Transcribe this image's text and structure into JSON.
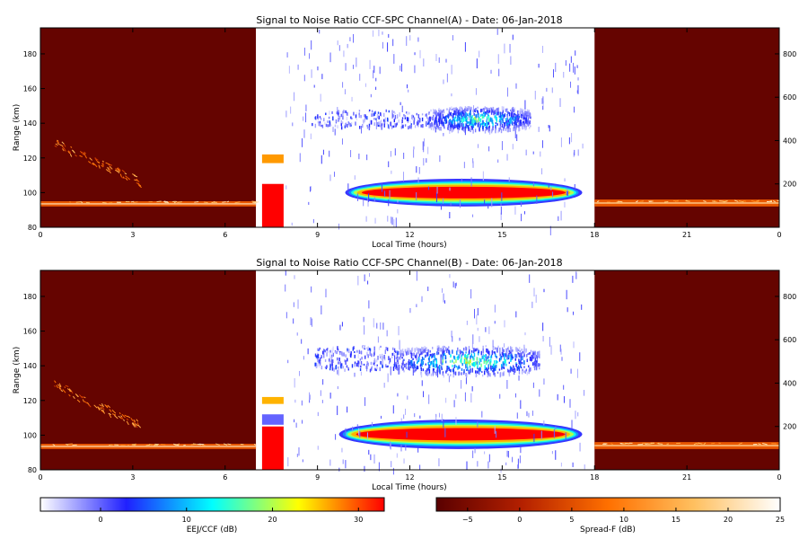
{
  "chart_data": [
    {
      "type": "heatmap",
      "title": "Signal to Noise Ratio CCF-SPC Channel(A) - Date: 06-Jan-2018",
      "xlabel": "Local Time (hours)",
      "ylabel": "Range (km)",
      "x_ticks": [
        "0",
        "3",
        "6",
        "9",
        "12",
        "15",
        "18",
        "21",
        "0"
      ],
      "x_range": [
        0,
        24
      ],
      "y_ticks": [
        80,
        100,
        120,
        140,
        160,
        180
      ],
      "y_range": [
        80,
        195
      ],
      "y2_ticks": [
        200,
        400,
        600,
        800
      ],
      "night_windows_hours": [
        [
          0,
          7
        ],
        [
          18,
          24
        ]
      ],
      "features": [
        {
          "kind": "eej_daytime_echo",
          "colormap": "ccf",
          "t_start": 9.9,
          "t_end": 17.6,
          "alt_bottom": 92,
          "alt_top": 108,
          "peak_db": 33
        },
        {
          "kind": "upper_echo_patches",
          "colormap": "ccf",
          "t_start": 12.6,
          "t_end": 15.9,
          "alt_bottom": 136,
          "alt_top": 150,
          "peak_db": 20
        },
        {
          "kind": "scattered_upper_echoes",
          "colormap": "ccf",
          "t_start": 8.8,
          "t_end": 12.6,
          "alt_bottom": 138,
          "alt_top": 148,
          "peak_db": 5
        },
        {
          "kind": "calibration_block",
          "colormap": "ccf",
          "t_start": 7.2,
          "t_end": 7.9,
          "alt_bottom": 80,
          "alt_top": 105,
          "value_db": 33
        },
        {
          "kind": "calibration_block",
          "colormap": "ccf",
          "t_start": 7.2,
          "t_end": 7.9,
          "alt_bottom": 117,
          "alt_top": 122,
          "value_db": 27
        },
        {
          "kind": "spread_f_night_echo",
          "colormap": "spreadf",
          "t_start": 0.0,
          "t_end": 7.0,
          "alt_bottom": 92,
          "alt_top": 95,
          "peak_db": 22
        },
        {
          "kind": "spread_f_night_echo",
          "colormap": "spreadf",
          "t_start": 18.0,
          "t_end": 24.0,
          "alt_bottom": 92,
          "alt_top": 96,
          "peak_db": 20
        },
        {
          "kind": "spread_f_plume",
          "colormap": "spreadf",
          "t_start": 0.4,
          "t_end": 3.2,
          "alt_bottom": 105,
          "alt_top": 132,
          "peak_db": 15
        }
      ]
    },
    {
      "type": "heatmap",
      "title": "Signal to Noise Ratio CCF-SPC Channel(B) - Date: 06-Jan-2018",
      "xlabel": "Local Time (hours)",
      "ylabel": "Range (km)",
      "x_ticks": [
        "0",
        "3",
        "6",
        "9",
        "12",
        "15",
        "18",
        "21",
        "0"
      ],
      "x_range": [
        0,
        24
      ],
      "y_ticks": [
        80,
        100,
        120,
        140,
        160,
        180
      ],
      "y_range": [
        80,
        195
      ],
      "y2_ticks": [
        200,
        400,
        600,
        800
      ],
      "night_windows_hours": [
        [
          0,
          7
        ],
        [
          18,
          24
        ]
      ],
      "features": [
        {
          "kind": "eej_daytime_echo",
          "colormap": "ccf",
          "t_start": 9.7,
          "t_end": 17.6,
          "alt_bottom": 92,
          "alt_top": 109,
          "peak_db": 33
        },
        {
          "kind": "upper_echo_patches",
          "colormap": "ccf",
          "t_start": 11.5,
          "t_end": 16.2,
          "alt_bottom": 135,
          "alt_top": 152,
          "peak_db": 22
        },
        {
          "kind": "scattered_upper_echoes",
          "colormap": "ccf",
          "t_start": 8.9,
          "t_end": 11.6,
          "alt_bottom": 138,
          "alt_top": 152,
          "peak_db": 5
        },
        {
          "kind": "calibration_block",
          "colormap": "ccf",
          "t_start": 7.2,
          "t_end": 7.9,
          "alt_bottom": 80,
          "alt_top": 105,
          "value_db": 33
        },
        {
          "kind": "calibration_block",
          "colormap": "ccf",
          "t_start": 7.2,
          "t_end": 7.9,
          "alt_bottom": 106,
          "alt_top": 112,
          "value_db": 0
        },
        {
          "kind": "calibration_block",
          "colormap": "ccf",
          "t_start": 7.2,
          "t_end": 7.9,
          "alt_bottom": 118,
          "alt_top": 122,
          "value_db": 26
        },
        {
          "kind": "spread_f_night_echo",
          "colormap": "spreadf",
          "t_start": 0.0,
          "t_end": 7.0,
          "alt_bottom": 92,
          "alt_top": 95,
          "peak_db": 22
        },
        {
          "kind": "spread_f_night_echo",
          "colormap": "spreadf",
          "t_start": 18.0,
          "t_end": 24.0,
          "alt_bottom": 92,
          "alt_top": 96,
          "peak_db": 20
        },
        {
          "kind": "spread_f_plume",
          "colormap": "spreadf",
          "t_start": 0.4,
          "t_end": 3.2,
          "alt_bottom": 105,
          "alt_top": 132,
          "peak_db": 15
        }
      ]
    }
  ],
  "colorbars": [
    {
      "label": "EEJ/CCF (dB)",
      "ticks": [
        0,
        10,
        20,
        30
      ],
      "range": [
        -7,
        33
      ],
      "colors": [
        "#ffffff",
        "#2020ff",
        "#00ffff",
        "#ffff00",
        "#ff0000"
      ]
    },
    {
      "label": "Spread-F (dB)",
      "ticks": [
        -5,
        0,
        5,
        10,
        15,
        20,
        25
      ],
      "tick_labels": [
        "−5",
        "0",
        "5",
        "10",
        "15",
        "20",
        "25"
      ],
      "range": [
        -8,
        25
      ],
      "colors": [
        "#5a0000",
        "#b42000",
        "#ff7000",
        "#ffc060",
        "#ffffff"
      ]
    }
  ]
}
